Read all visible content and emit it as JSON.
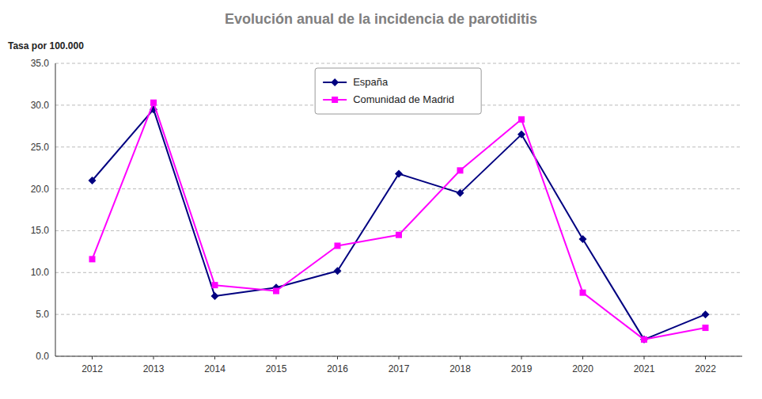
{
  "chart_data": {
    "type": "line",
    "title": "Evolución anual de la incidencia de parotiditis",
    "y_label": "Tasa por 100.000",
    "x": [
      2012,
      2013,
      2014,
      2015,
      2016,
      2017,
      2018,
      2019,
      2020,
      2021,
      2022
    ],
    "series": [
      {
        "name": "España",
        "color": "#000080",
        "marker": "diamond",
        "values": [
          21.0,
          29.5,
          7.2,
          8.2,
          10.2,
          21.8,
          19.5,
          26.5,
          14.0,
          2.0,
          5.0
        ]
      },
      {
        "name": "Comunidad de Madrid",
        "color": "#FF00FF",
        "marker": "square",
        "values": [
          11.6,
          30.3,
          8.5,
          7.8,
          13.2,
          14.5,
          22.2,
          28.3,
          7.6,
          2.0,
          3.4
        ]
      }
    ],
    "xlim": [
      2011.4,
      2022.6
    ],
    "xticks": [
      2012,
      2013,
      2014,
      2015,
      2016,
      2017,
      2018,
      2019,
      2020,
      2021,
      2022
    ],
    "ylim": [
      0,
      35
    ],
    "yticks": [
      {
        "value": 0.0,
        "label": "0.0"
      },
      {
        "value": 5.0,
        "label": "5.0"
      },
      {
        "value": 10.0,
        "label": "10.0"
      },
      {
        "value": 15.0,
        "label": "15.0"
      },
      {
        "value": 20.0,
        "label": "20.0"
      },
      {
        "value": 25.0,
        "label": "25.0"
      },
      {
        "value": 30.0,
        "label": "30.0"
      },
      {
        "value": 35.0,
        "label": "35.0"
      }
    ],
    "grid": true,
    "legend": "top"
  }
}
